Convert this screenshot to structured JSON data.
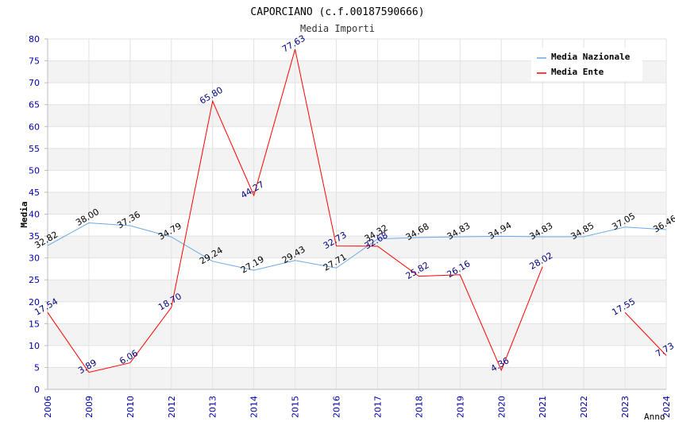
{
  "chart_data": {
    "type": "line",
    "title": "CAPORCIANO (c.f.00187590666)",
    "subtitle": "Media Importi",
    "xlabel": "Anno",
    "ylabel": "Media",
    "ylim": [
      0,
      80
    ],
    "yticks": [
      "0",
      "5",
      "10",
      "15",
      "20",
      "25",
      "30",
      "35",
      "40",
      "45",
      "50",
      "55",
      "60",
      "65",
      "70",
      "75",
      "80"
    ],
    "categories": [
      "2006",
      "2009",
      "2010",
      "2012",
      "2013",
      "2014",
      "2015",
      "2016",
      "2017",
      "2018",
      "2019",
      "2020",
      "2021",
      "2022",
      "2023",
      "2024"
    ],
    "legend_position": "top-right",
    "series": [
      {
        "name": "Media Nazionale",
        "color": "#6aa9e6",
        "values": [
          32.82,
          38.0,
          37.36,
          34.79,
          29.24,
          27.19,
          29.43,
          27.71,
          34.32,
          34.68,
          34.83,
          34.94,
          34.83,
          34.85,
          37.05,
          36.46
        ],
        "labels": [
          "32.82",
          "38.00",
          "37.36",
          "34.79",
          "29.24",
          "27.19",
          "29.43",
          "27.71",
          "34.32",
          "34.68",
          "34.83",
          "34.94",
          "34.83",
          "34.85",
          "37.05",
          "36.46"
        ]
      },
      {
        "name": "Media Ente",
        "color": "#ff0000",
        "values": [
          17.54,
          3.89,
          6.06,
          18.7,
          65.8,
          44.27,
          77.63,
          32.73,
          32.68,
          25.82,
          26.16,
          4.36,
          28.02,
          null,
          17.55,
          7.73
        ],
        "labels": [
          "17.54",
          "3.89",
          "6.06",
          "18.70",
          "65.80",
          "44.27",
          "77.63",
          "32.73",
          "32.68",
          "25.82",
          "26.16",
          "4.36",
          "28.02",
          "",
          "17.55",
          "7.73"
        ]
      }
    ]
  }
}
